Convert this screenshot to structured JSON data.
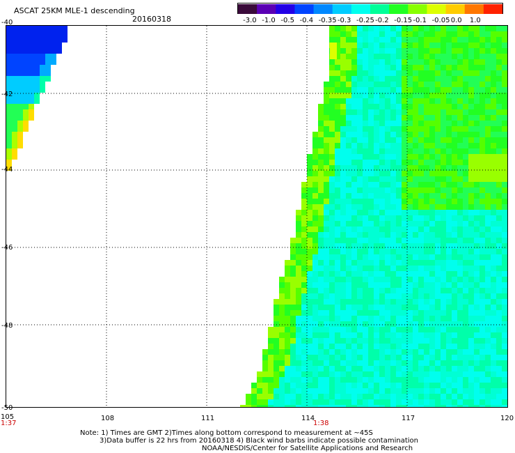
{
  "header": {
    "title": "ASCAT 25KM MLE-1 descending",
    "date": "20160318"
  },
  "colorbar": {
    "labels": [
      "-3.0",
      "-1.0",
      "-0.5",
      "-0.4",
      "-0.35",
      "-0.3",
      "-0.25",
      "-0.2",
      "-0.15",
      "-0.1",
      "-0.05",
      "0.0",
      "1.0"
    ],
    "colors": [
      "#3a0a3a",
      "#5a00b4",
      "#2200e6",
      "#0044ff",
      "#0088ff",
      "#00ccff",
      "#00ffee",
      "#00ff99",
      "#22ff22",
      "#88ff00",
      "#ddff00",
      "#ffcc00",
      "#ff7700",
      "#ff2200"
    ]
  },
  "axes": {
    "lat_labels": [
      "-40",
      "-42",
      "-44",
      "-46",
      "-48",
      "-50"
    ],
    "lon_labels": [
      "105",
      "108",
      "111",
      "114",
      "117",
      "120"
    ],
    "time_labels": [
      {
        "text": "1:37",
        "lon": 105
      },
      {
        "text": "1:38",
        "lon": 114
      }
    ]
  },
  "notes": [
    "Note: 1) Times are GMT 2)Times along bottom correspond to measurement at ~45S",
    "3)Data buffer is 22 hrs from 20160318 4) Black wind barbs indicate possible contamination",
    "NOAA/NESDIS/Center for Satellite Applications and Research"
  ]
}
